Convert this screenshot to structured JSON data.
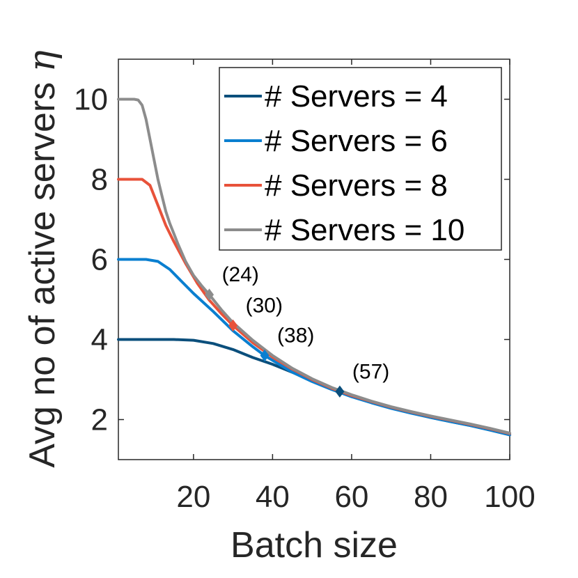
{
  "chart_data": {
    "type": "line",
    "xlabel": "Batch size",
    "ylabel": "Avg no of active servers",
    "ylabel_symbol": "η",
    "xlim": [
      1,
      100
    ],
    "ylim": [
      1,
      11
    ],
    "xticks": [
      20,
      40,
      60,
      80,
      100
    ],
    "yticks": [
      2,
      4,
      6,
      8,
      10
    ],
    "grid": false,
    "legend_position": "top-right",
    "series": [
      {
        "name": "# Servers = 4",
        "color": "#0b4f7c",
        "x": [
          1,
          5,
          10,
          15,
          20,
          25,
          30,
          35,
          40,
          45,
          50,
          55,
          60,
          65,
          70,
          75,
          80,
          85,
          90,
          95,
          100
        ],
        "y": [
          4.0,
          4.0,
          4.0,
          4.0,
          3.98,
          3.9,
          3.75,
          3.55,
          3.38,
          3.18,
          2.98,
          2.78,
          2.6,
          2.45,
          2.3,
          2.17,
          2.05,
          1.95,
          1.85,
          1.74,
          1.62
        ],
        "marker": {
          "x": 57,
          "y": 2.7,
          "label": "(57)"
        }
      },
      {
        "name": "# Servers = 6",
        "color": "#0a7fd0",
        "x": [
          1,
          5,
          8,
          11,
          14,
          17,
          20,
          25,
          30,
          35,
          38,
          45,
          50,
          55,
          60,
          65,
          70,
          75,
          80,
          85,
          90,
          95,
          100
        ],
        "y": [
          6.0,
          6.0,
          6.0,
          5.95,
          5.75,
          5.45,
          5.15,
          4.7,
          4.22,
          3.82,
          3.6,
          3.18,
          2.95,
          2.75,
          2.57,
          2.42,
          2.28,
          2.16,
          2.05,
          1.95,
          1.85,
          1.74,
          1.62
        ],
        "marker": {
          "x": 38,
          "y": 3.6,
          "label": "(38)"
        }
      },
      {
        "name": "# Servers = 8",
        "color": "#e8523a",
        "x": [
          1,
          5,
          7,
          9,
          11,
          13,
          15,
          18,
          21,
          24,
          27,
          30,
          35,
          40,
          45,
          50,
          55,
          60,
          65,
          70,
          75,
          80,
          85,
          90,
          95,
          100
        ],
        "y": [
          8.0,
          8.0,
          8.0,
          7.85,
          7.35,
          6.85,
          6.45,
          5.9,
          5.4,
          4.98,
          4.65,
          4.35,
          3.92,
          3.56,
          3.26,
          3.0,
          2.78,
          2.6,
          2.45,
          2.31,
          2.19,
          2.08,
          1.98,
          1.88,
          1.77,
          1.65
        ],
        "marker": {
          "x": 30,
          "y": 4.35,
          "label": "(30)"
        }
      },
      {
        "name": "# Servers = 10",
        "color": "#8c8c8c",
        "x": [
          1,
          5,
          6,
          7,
          8,
          9,
          10,
          11,
          12,
          13,
          14,
          16,
          18,
          20,
          22,
          24,
          27,
          30,
          35,
          40,
          45,
          50,
          55,
          60,
          65,
          70,
          75,
          80,
          85,
          90,
          95,
          100
        ],
        "y": [
          10.0,
          10.0,
          9.98,
          9.85,
          9.5,
          9.0,
          8.5,
          8.0,
          7.6,
          7.2,
          6.9,
          6.4,
          5.95,
          5.6,
          5.35,
          5.12,
          4.75,
          4.42,
          3.98,
          3.6,
          3.28,
          3.02,
          2.8,
          2.62,
          2.46,
          2.32,
          2.2,
          2.09,
          1.99,
          1.89,
          1.78,
          1.66
        ],
        "marker": {
          "x": 24,
          "y": 5.12,
          "label": "(24)"
        }
      }
    ]
  }
}
